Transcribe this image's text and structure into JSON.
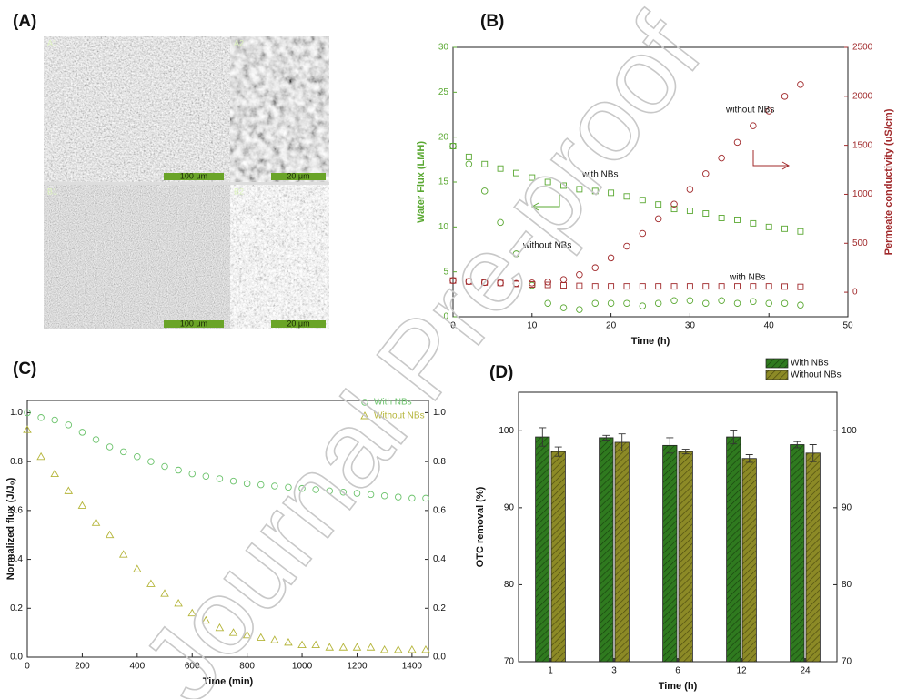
{
  "figure": {
    "watermark": "Journal Pre-proof",
    "panel_labels": [
      "(A)",
      "(B)",
      "(C)",
      "(D)"
    ],
    "sem_images": [
      {
        "label": "A1",
        "scale_bar": "100 μm"
      },
      {
        "label": "A2",
        "scale_bar": "20 μm"
      },
      {
        "label": "B1",
        "scale_bar": "100 μm"
      },
      {
        "label": "B2",
        "scale_bar": "20 μm"
      }
    ]
  },
  "chart_data": [
    {
      "type": "line",
      "xlabel": "Time (h)",
      "ylabel": "Water Flux (LMH)",
      "y2label": "Permeate conductivity (uS/cm)",
      "x": [
        0,
        2,
        4,
        6,
        8,
        10,
        12,
        14,
        16,
        18,
        20,
        22,
        24,
        26,
        28,
        30,
        32,
        34,
        36,
        38,
        40,
        42,
        44
      ],
      "xlim": [
        0,
        50
      ],
      "xticks": [
        0,
        10,
        20,
        30,
        40,
        50
      ],
      "ylim": [
        0,
        30
      ],
      "yticks": [
        0,
        5,
        10,
        15,
        20,
        25,
        30
      ],
      "y2lim": [
        -250,
        2500
      ],
      "y2ticks": [
        0,
        500,
        1000,
        1500,
        2000,
        2500
      ],
      "series": [
        {
          "name": "with NBs",
          "color": "#5aa832",
          "marker": "square",
          "values": [
            19,
            17.8,
            17,
            16.5,
            16,
            15.5,
            15,
            14.6,
            14.2,
            14,
            13.8,
            13.4,
            13,
            12.5,
            12,
            11.8,
            11.5,
            11,
            10.8,
            10.4,
            10,
            9.8,
            9.5
          ]
        },
        {
          "name": "without NBs",
          "color": "#5aa832",
          "marker": "circle",
          "values": [
            19,
            17,
            14,
            10.5,
            7,
            3.5,
            1.5,
            1,
            0.8,
            1.5,
            1.5,
            1.5,
            1.2,
            1.5,
            1.8,
            1.8,
            1.5,
            1.8,
            1.5,
            1.7,
            1.5,
            1.5,
            1.3
          ]
        },
        {
          "name": "without NBs",
          "color": "#a0282a",
          "marker": "circle",
          "axis": "y2",
          "values": [
            120,
            110,
            100,
            95,
            90,
            95,
            105,
            130,
            180,
            250,
            350,
            470,
            600,
            750,
            900,
            1050,
            1210,
            1370,
            1530,
            1700,
            1850,
            2000,
            2120
          ]
        },
        {
          "name": "with NBs",
          "color": "#a0282a",
          "marker": "square",
          "axis": "y2",
          "values": [
            120,
            110,
            100,
            95,
            85,
            80,
            75,
            70,
            65,
            60,
            60,
            60,
            60,
            60,
            60,
            60,
            60,
            60,
            60,
            60,
            60,
            58,
            55
          ]
        }
      ]
    },
    {
      "type": "scatter",
      "xlabel": "Time (min)",
      "ylabel": "Normalized flux (J/J₀)",
      "legend": "upper right",
      "x": [
        0,
        50,
        100,
        150,
        200,
        250,
        300,
        350,
        400,
        450,
        500,
        550,
        600,
        650,
        700,
        750,
        800,
        850,
        900,
        950,
        1000,
        1050,
        1100,
        1150,
        1200,
        1250,
        1300,
        1350,
        1400,
        1450
      ],
      "xlim": [
        0,
        1460
      ],
      "xticks": [
        0,
        200,
        400,
        600,
        800,
        1000,
        1200,
        1400
      ],
      "ylim": [
        0,
        1.05
      ],
      "yticks": [
        {
          "value": 0,
          "label": "0.0"
        },
        0.2,
        0.4,
        0.6,
        0.8,
        {
          "value": 1,
          "label": "1.0"
        }
      ],
      "series": [
        {
          "name": "With NBs",
          "color": "#6cc36c",
          "marker": "circle",
          "values": [
            1.0,
            0.98,
            0.97,
            0.95,
            0.92,
            0.89,
            0.86,
            0.84,
            0.82,
            0.8,
            0.78,
            0.765,
            0.75,
            0.74,
            0.73,
            0.72,
            0.71,
            0.705,
            0.7,
            0.695,
            0.69,
            0.685,
            0.68,
            0.675,
            0.67,
            0.665,
            0.66,
            0.655,
            0.65,
            0.65
          ]
        },
        {
          "name": "Without NBs",
          "color": "#b5b53a",
          "marker": "triangle",
          "values": [
            0.93,
            0.82,
            0.75,
            0.68,
            0.62,
            0.55,
            0.5,
            0.42,
            0.36,
            0.3,
            0.26,
            0.22,
            0.18,
            0.15,
            0.12,
            0.1,
            0.09,
            0.08,
            0.07,
            0.06,
            0.05,
            0.05,
            0.04,
            0.04,
            0.04,
            0.04,
            0.03,
            0.03,
            0.03,
            0.03
          ]
        }
      ]
    },
    {
      "type": "bar",
      "xlabel": "Time (h)",
      "ylabel": "OTC removal (%)",
      "legend": "upper right",
      "categories": [
        "1",
        "3",
        "6",
        "12",
        "24"
      ],
      "ylim": [
        70,
        105
      ],
      "yticks": [
        70,
        80,
        90,
        100
      ],
      "series": [
        {
          "name": "With NBs",
          "color": "#2f7a1f",
          "values": [
            99.2,
            99.1,
            98.1,
            99.2,
            98.2
          ],
          "errors": [
            1.2,
            0.3,
            1.0,
            0.9,
            0.4
          ]
        },
        {
          "name": "Without NBs",
          "color": "#8c8a26",
          "values": [
            97.3,
            98.5,
            97.3,
            96.4,
            97.1
          ],
          "errors": [
            0.6,
            1.1,
            0.3,
            0.5,
            1.1
          ]
        }
      ]
    }
  ]
}
